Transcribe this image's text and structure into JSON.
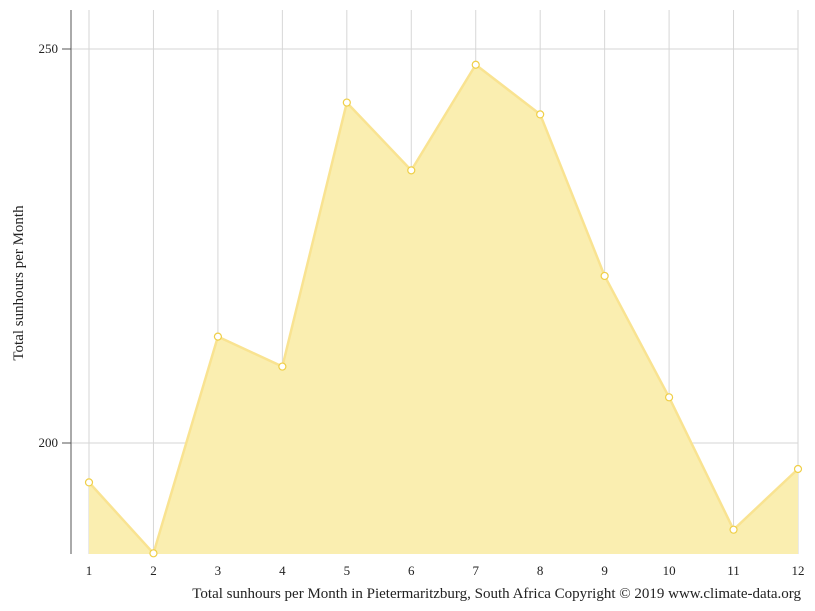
{
  "chart_data": {
    "type": "area",
    "x": [
      1,
      2,
      3,
      4,
      5,
      6,
      7,
      8,
      9,
      10,
      11,
      12
    ],
    "series": [
      {
        "values": [
          195,
          186,
          213.5,
          209.7,
          243.2,
          234.6,
          248,
          241.7,
          221.2,
          205.8,
          189,
          196.7
        ]
      }
    ],
    "ylabel": "Total sunhours per Month",
    "caption": "Total sunhours per Month in Pietermaritzburg, South Africa Copyright © 2019 www.climate-data.org",
    "yticks": [
      200,
      250
    ],
    "ylim": [
      186,
      255
    ],
    "grid": true,
    "colors": {
      "fill": "#faeeb0",
      "line": "#f9e391",
      "marker_stroke": "#efcf48",
      "marker_fill": "#ffffff"
    }
  }
}
